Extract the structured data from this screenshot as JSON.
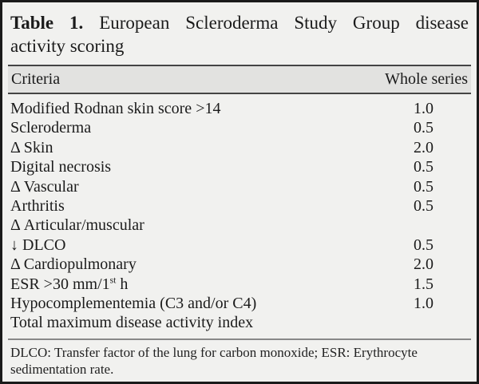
{
  "table": {
    "title_label": "Table 1.",
    "title_line1_rest": "European Scleroderma Study Group disease",
    "title_line2": "activity scoring",
    "header": {
      "criteria": "Criteria",
      "value_column": "Whole series"
    },
    "rows": [
      {
        "label": "Modified Rodnan skin score >14",
        "value": "1.0"
      },
      {
        "label": "Scleroderma",
        "value": "0.5"
      },
      {
        "label": "Δ Skin",
        "value": "2.0"
      },
      {
        "label": "Digital necrosis",
        "value": "0.5"
      },
      {
        "label": "Δ Vascular",
        "value": "0.5"
      },
      {
        "label": "Arthritis",
        "value": "0.5"
      },
      {
        "label": "Δ Articular/muscular",
        "value": ""
      },
      {
        "label": "↓ DLCO",
        "value": "0.5"
      },
      {
        "label": "Δ Cardiopulmonary",
        "value": "2.0"
      },
      {
        "label_parts": [
          {
            "text": "ESR >30 mm/1"
          },
          {
            "text": "st",
            "sup": true
          },
          {
            "text": " h"
          }
        ],
        "value": "1.5"
      },
      {
        "label": "Hypocomplementemia (C3 and/or C4)",
        "value": "1.0"
      },
      {
        "label": "Total maximum disease activity index",
        "value": ""
      }
    ],
    "footnote": "DLCO: Transfer factor of the lung for carbon monoxide; ESR: Erythrocyte sedimentation rate."
  },
  "colors": {
    "card_background": "#f1f1ef",
    "header_band": "#e2e2e0",
    "outer_border": "#1a1a1a",
    "rule_dark": "#444444",
    "rule_footnote": "#888888",
    "text": "#1b1b1b"
  }
}
